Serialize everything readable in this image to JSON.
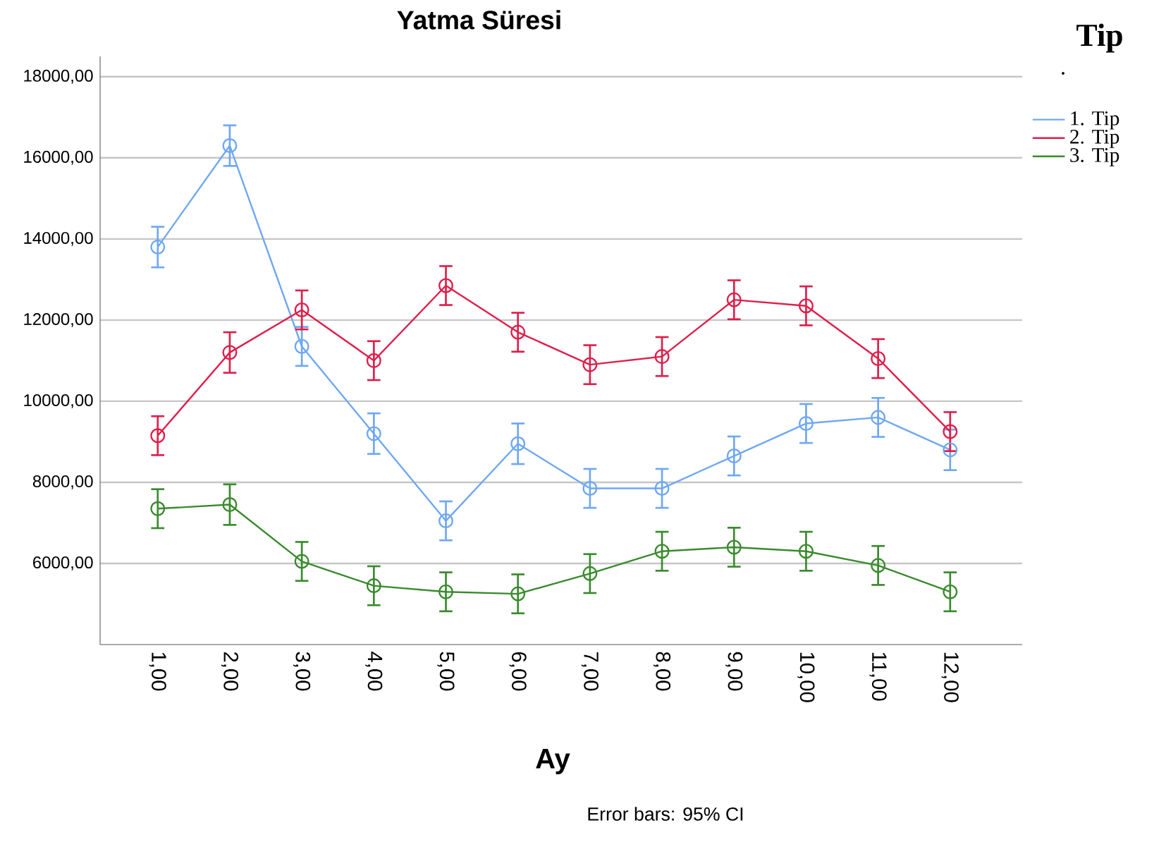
{
  "chart_data": {
    "type": "line",
    "title": "Yatma Süresi",
    "xlabel": "Ay",
    "legend_title": "Tip",
    "annotations": [
      ".",
      "Error bars: 95% CI"
    ],
    "categories": [
      "1,00",
      "2,00",
      "3,00",
      "4,00",
      "5,00",
      "6,00",
      "7,00",
      "8,00",
      "9,00",
      "10,00",
      "11,00",
      "12,00"
    ],
    "series": [
      {
        "name": "1. Tip",
        "color": "#6fa8f0",
        "values": [
          13800,
          16300,
          11350,
          9200,
          7050,
          8950,
          7850,
          7850,
          8650,
          9450,
          9600,
          8800
        ],
        "errors": [
          500,
          500,
          480,
          500,
          480,
          500,
          480,
          480,
          480,
          480,
          480,
          500
        ]
      },
      {
        "name": "2. Tip",
        "color": "#dd1f4a",
        "values": [
          9150,
          11200,
          12250,
          11000,
          12850,
          11700,
          10900,
          11100,
          12500,
          12350,
          11050,
          9250
        ],
        "errors": [
          480,
          500,
          480,
          480,
          480,
          480,
          480,
          480,
          480,
          480,
          480,
          480
        ]
      },
      {
        "name": "3. Tip",
        "color": "#3a8a2e",
        "values": [
          7350,
          7450,
          6050,
          5450,
          5300,
          5250,
          5750,
          6300,
          6400,
          6300,
          5950,
          5300
        ],
        "errors": [
          480,
          500,
          480,
          480,
          480,
          480,
          480,
          480,
          480,
          480,
          480,
          480
        ]
      }
    ],
    "ylim": [
      4000,
      18500
    ],
    "yticks": [
      {
        "value": 6000,
        "label": "6000,00"
      },
      {
        "value": 8000,
        "label": "8000,00"
      },
      {
        "value": 10000,
        "label": "10000,00"
      },
      {
        "value": 12000,
        "label": "12000,00"
      },
      {
        "value": 14000,
        "label": "14000,00"
      },
      {
        "value": 16000,
        "label": "16000,00"
      },
      {
        "value": 18000,
        "label": "18000,00"
      }
    ],
    "grid": "y",
    "legend": "top right",
    "marker": "circle",
    "line_style": "solid"
  }
}
